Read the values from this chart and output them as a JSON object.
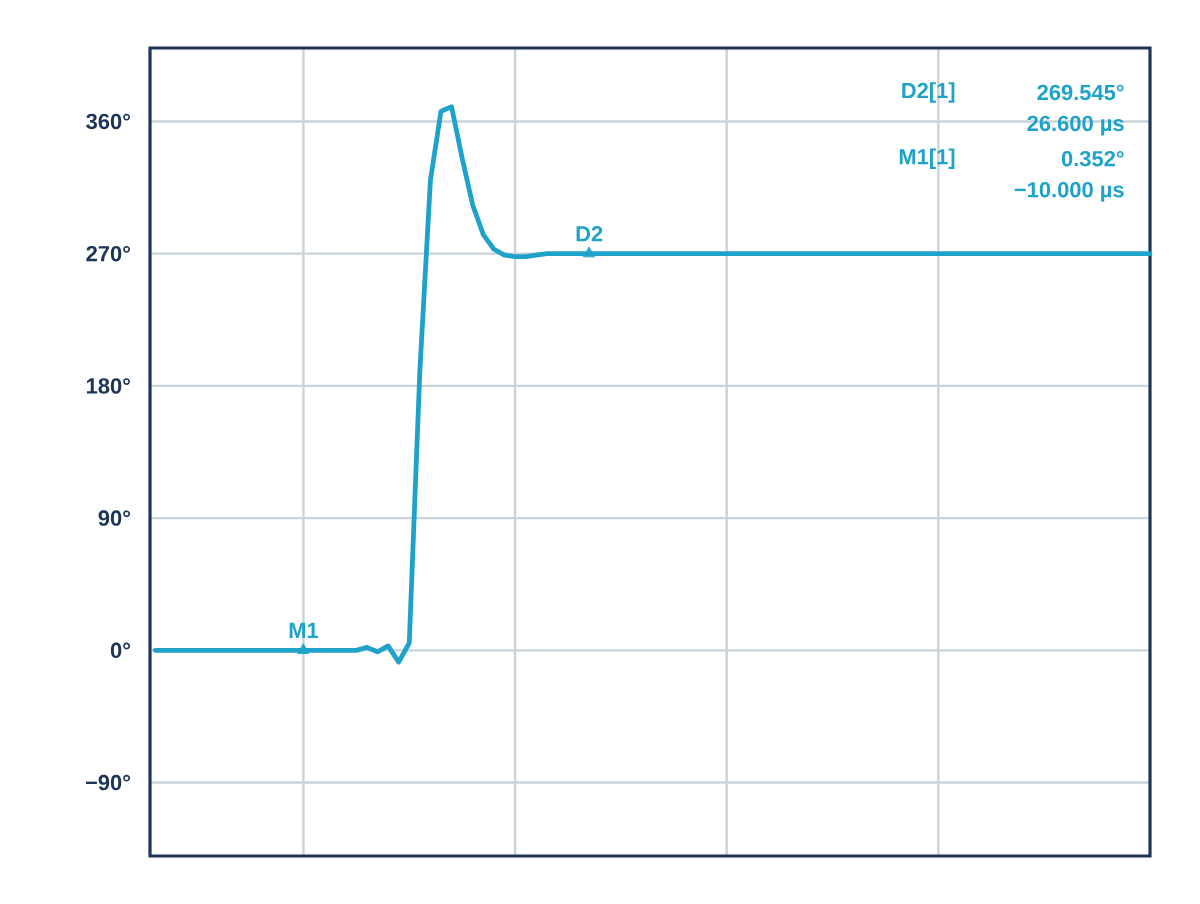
{
  "chart_data": {
    "type": "line",
    "categories": [
      null,
      null,
      null,
      null,
      null,
      null,
      null,
      null,
      null,
      null,
      null,
      null,
      null,
      null,
      null,
      null,
      null,
      null,
      null,
      null,
      null,
      null,
      null,
      null,
      null,
      null,
      null,
      null,
      null,
      null,
      null,
      null,
      null,
      null,
      null,
      null,
      null,
      null,
      null,
      null,
      null,
      null,
      null,
      null,
      null,
      null,
      null,
      null,
      null,
      null,
      null,
      null,
      null,
      null,
      null,
      null,
      null,
      null,
      null,
      null,
      null,
      null,
      null,
      null,
      null,
      null,
      null,
      null,
      null,
      null,
      null,
      null,
      null,
      null,
      null,
      null,
      null,
      null,
      null,
      null,
      null,
      null,
      null,
      null,
      null,
      null,
      null,
      null,
      null,
      null,
      null,
      null,
      null,
      null,
      null
    ],
    "series": [
      {
        "color": "#1fa2c9",
        "values": [
          0,
          0,
          0,
          0,
          0,
          0,
          0,
          0,
          0,
          0,
          0,
          0,
          0,
          0,
          0,
          0,
          0,
          0,
          0,
          0,
          2,
          -1,
          3,
          -8,
          5,
          190,
          320,
          367,
          370,
          335,
          303,
          283,
          273,
          269,
          268,
          268,
          269,
          270,
          270,
          270,
          270,
          270,
          270,
          270,
          270,
          270,
          270,
          270,
          270,
          270,
          270,
          270,
          270,
          270,
          270,
          270,
          270,
          270,
          270,
          270,
          270,
          270,
          270,
          270,
          270,
          270,
          270,
          270,
          270,
          270,
          270,
          270,
          270,
          270,
          270,
          270,
          270,
          270,
          270,
          270,
          270,
          270,
          270,
          270,
          270,
          270,
          270,
          270,
          270,
          270,
          270,
          270,
          270,
          270,
          270
        ]
      },
      {
        "name": "M1",
        "type": "scatter",
        "marker": "triangle",
        "color": "#1fa2c9",
        "values": [
          null,
          null,
          null,
          null,
          null,
          null,
          null,
          null,
          null,
          null,
          null,
          null,
          null,
          null,
          0,
          null,
          null,
          null,
          null,
          null,
          null,
          null,
          null,
          null,
          null,
          null,
          null,
          null,
          null,
          null,
          null,
          null,
          null,
          null,
          null,
          null,
          null,
          null,
          null,
          null,
          null,
          null,
          null,
          null,
          null,
          null,
          null,
          null,
          null,
          null,
          null,
          null,
          null,
          null,
          null,
          null,
          null,
          null,
          null,
          null,
          null,
          null,
          null,
          null,
          null,
          null,
          null,
          null,
          null,
          null,
          null,
          null,
          null,
          null,
          null,
          null,
          null,
          null,
          null,
          null,
          null,
          null,
          null,
          null,
          null,
          null,
          null,
          null,
          null,
          null,
          null,
          null,
          null,
          null,
          null
        ]
      },
      {
        "name": "D2",
        "type": "scatter",
        "marker": "triangle",
        "color": "#1fa2c9",
        "values": [
          null,
          null,
          null,
          null,
          null,
          null,
          null,
          null,
          null,
          null,
          null,
          null,
          null,
          null,
          null,
          null,
          null,
          null,
          null,
          null,
          null,
          null,
          null,
          null,
          null,
          null,
          null,
          null,
          null,
          null,
          null,
          null,
          null,
          null,
          null,
          null,
          null,
          null,
          null,
          null,
          null,
          270,
          null,
          null,
          null,
          null,
          null,
          null,
          null,
          null,
          null,
          null,
          null,
          null,
          null,
          null,
          null,
          null,
          null,
          null,
          null,
          null,
          null,
          null,
          null,
          null,
          null,
          null,
          null,
          null,
          null,
          null,
          null,
          null,
          null,
          null,
          null,
          null,
          null,
          null,
          null,
          null,
          null,
          null,
          null,
          null,
          null,
          null,
          null,
          null,
          null,
          null,
          null,
          null,
          null
        ]
      }
    ],
    "ylim": [
      -140,
      410
    ],
    "yticks": [
      {
        "value": -90,
        "label": "−90°"
      },
      {
        "value": 0,
        "label": "0°"
      },
      {
        "value": 90,
        "label": "90°"
      },
      {
        "value": 180,
        "label": "180°"
      },
      {
        "value": 270,
        "label": "270°"
      },
      {
        "value": 360,
        "label": "360°"
      }
    ],
    "tick_labels": "y",
    "grid": true,
    "marker": "none",
    "line_style": "solid",
    "legend": false,
    "annotations": [
      "D2[1]",
      "269.545°",
      "26.600 µs",
      "M1[1]",
      "0.352°",
      "−10.000 µs"
    ]
  }
}
